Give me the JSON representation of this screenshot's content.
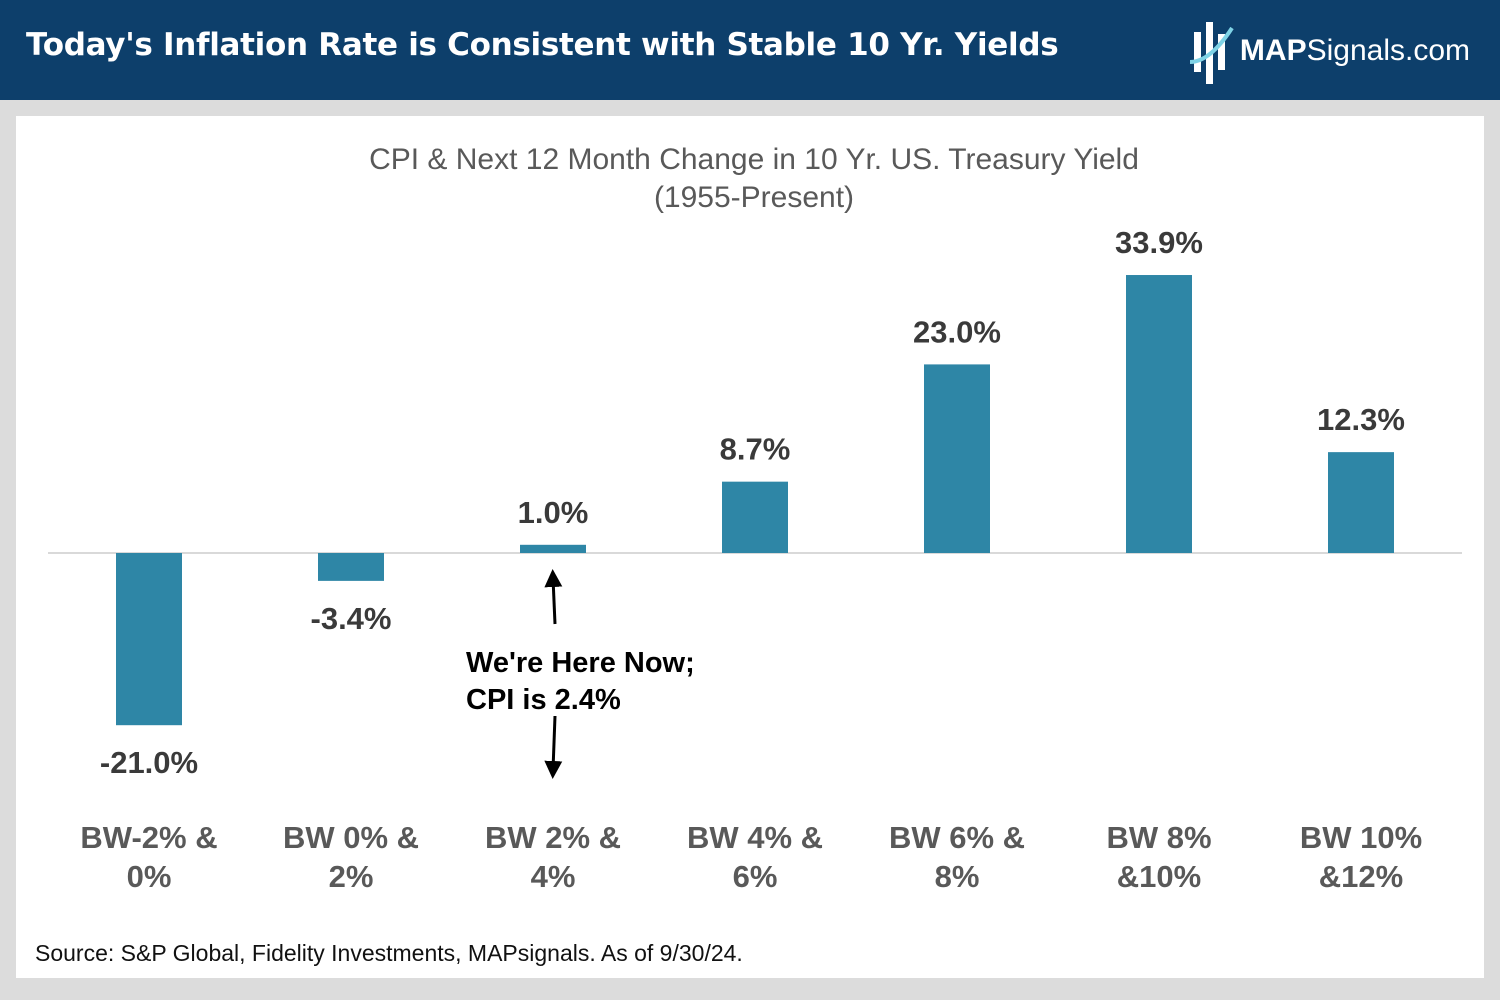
{
  "header": {
    "title": "Today's Inflation Rate is Consistent with Stable 10 Yr. Yields",
    "brand_bold": "MAP",
    "brand_regular": "Signals.com",
    "logo_icon": "mapsignals-logo-icon"
  },
  "colors": {
    "header_bg": "#0d3f6b",
    "bar": "#2e86a6",
    "label": "#3a3a3a"
  },
  "chart_data": {
    "type": "bar",
    "title": "CPI & Next 12 Month Change in 10 Yr. US. Treasury Yield",
    "subtitle": "(1955-Present)",
    "categories": [
      [
        "BW-2% &",
        "0%"
      ],
      [
        "BW 0% &",
        "2%"
      ],
      [
        "BW 2% &",
        "4%"
      ],
      [
        "BW 4% &",
        "6%"
      ],
      [
        "BW 6% &",
        "8%"
      ],
      [
        "BW 8%",
        "&10%"
      ],
      [
        "BW 10%",
        "&12%"
      ]
    ],
    "values": [
      -21.0,
      -3.4,
      1.0,
      8.7,
      23.0,
      33.9,
      12.3
    ],
    "value_labels": [
      "-21.0%",
      "-3.4%",
      "1.0%",
      "8.7%",
      "23.0%",
      "33.9%",
      "12.3%"
    ],
    "annotation": {
      "category_index": 2,
      "lines": [
        "We're Here Now;",
        "CPI is 2.4%"
      ]
    },
    "grid": false,
    "legend": "none"
  },
  "footer": {
    "source": "Source: S&P Global, Fidelity Investments, MAPsignals. As of 9/30/24."
  }
}
